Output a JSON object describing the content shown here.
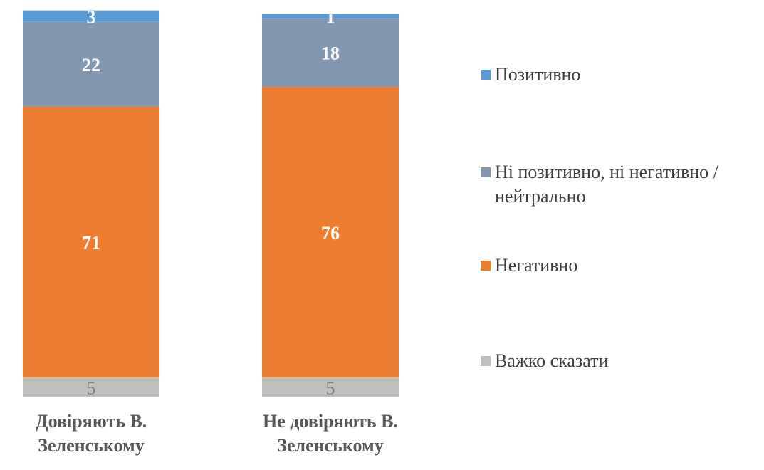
{
  "chart_data": {
    "type": "bar",
    "stacked": true,
    "percent": true,
    "categories": [
      "Довіряють В. Зеленському",
      "Не довіряють В. Зеленському"
    ],
    "series": [
      {
        "name": "Важко сказати",
        "values": [
          5,
          5
        ],
        "color": "#BFBFBF",
        "label_color": "#808080"
      },
      {
        "name": "Негативно",
        "values": [
          71,
          76
        ],
        "color": "#ED7D31",
        "label_color": "#FFFFFF"
      },
      {
        "name": "Ні позитивно, ні негативно / нейтрально",
        "values": [
          22,
          18
        ],
        "color": "#8497B0",
        "label_color": "#FFFFFF"
      },
      {
        "name": "Позитивно",
        "values": [
          3,
          1
        ],
        "color": "#5B9BD5",
        "label_color": "#FFFFFF"
      }
    ],
    "legend_order": [
      "Позитивно",
      "Ні позитивно, ні негативно / нейтрально",
      "Негативно",
      "Важко сказати"
    ],
    "legend_position": "right",
    "ylim": [
      0,
      100
    ],
    "grid": false
  }
}
